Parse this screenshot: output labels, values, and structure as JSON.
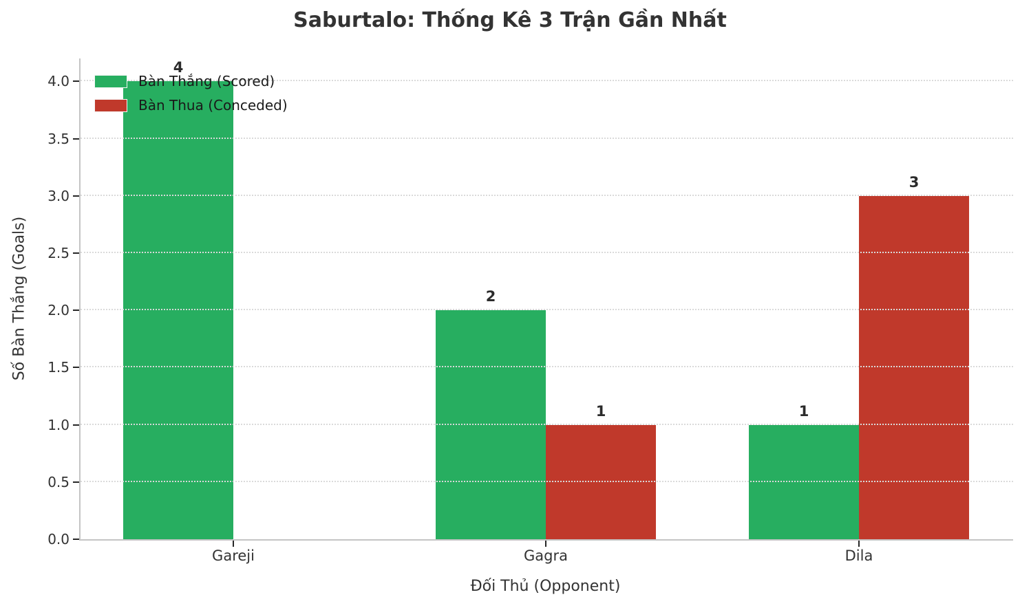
{
  "chart": {
    "title": "Saburtalo: Thống Kê 3 Trận Gần Nhất",
    "xlabel": "Đối Thủ (Opponent)",
    "ylabel": "Số Bàn Thắng (Goals)"
  },
  "chart_data": {
    "type": "bar",
    "title": "Saburtalo: Thống Kê 3 Trận Gần Nhất",
    "categories": [
      "Gareji",
      "Gagra",
      "Dila"
    ],
    "series": [
      {
        "name": "Bàn Thắng (Scored)",
        "color": "#27ae60",
        "values": [
          4,
          2,
          1
        ]
      },
      {
        "name": "Bàn Thua (Conceded)",
        "color": "#c0392b",
        "values": [
          0,
          1,
          3
        ]
      }
    ],
    "bar_labels_shown": [
      "4",
      "2",
      "1",
      "1",
      "3"
    ],
    "xlabel": "Đối Thủ (Opponent)",
    "ylabel": "Số Bàn Thắng (Goals)",
    "ylim": [
      0,
      4.2
    ],
    "yticks": [
      0.0,
      0.5,
      1.0,
      1.5,
      2.0,
      2.5,
      3.0,
      3.5,
      4.0
    ],
    "ytick_labels": [
      "0.0",
      "0.5",
      "1.0",
      "1.5",
      "2.0",
      "2.5",
      "3.0",
      "3.5",
      "4.0"
    ],
    "grid": {
      "axis": "y",
      "style": "dotted",
      "color": "#dadada",
      "drawn_over_bars": true
    },
    "legend": {
      "position": "upper left",
      "frame": false
    },
    "zero_value_bars_hidden": true
  },
  "style": {
    "scored_color": "#27ae60",
    "conceded_color": "#c0392b",
    "spine_color": "#c4c4c4",
    "tick_color": "#262626",
    "text_color": "#333333"
  }
}
